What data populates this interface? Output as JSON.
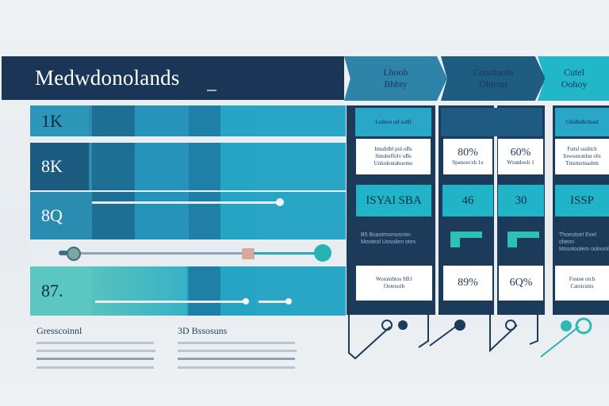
{
  "header": {
    "title": "Medwdonolands",
    "chevrons": [
      {
        "line1": "Lhoob",
        "line2": "Bhbty"
      },
      {
        "line1": "Conotooth",
        "line2": "Ohicon"
      },
      {
        "line1": "Cutel",
        "line2": "Oohoy"
      }
    ]
  },
  "left_panel": {
    "rows": [
      "1K",
      "8K",
      "8Q",
      "87."
    ]
  },
  "right_grid": {
    "top_labels": [
      "Lsdnoo otf soBf",
      "",
      "Gfedhdbchsed"
    ],
    "cards_row1": [
      {
        "text": "Imsdslbl pol oBs\nSmobeffolv oBs\nUnlodoutaboomo"
      },
      {
        "text": "80%",
        "sub": "Spanoecxh 1x"
      },
      {
        "text": "60%",
        "sub": "Wsutdoolt 1"
      },
      {
        "text": "Fsttsl ssslttch\nInwsstsonlsn ofn\nTmsttsrtnasbm"
      }
    ],
    "teal_row": [
      "ISYAl SBA",
      "46",
      "30",
      "ISSP"
    ],
    "mid_text": [
      "B5 Bsaotmomosmin\nMooteol Uosoilen otes",
      "Thoeotoel Eoel olteon\nMosotoolem oolnonl"
    ],
    "cards_row3": [
      {
        "text": "Wotombtos SB1\nOotexoib"
      },
      {
        "text": "89%"
      },
      {
        "text": "6Q%"
      },
      {
        "text": "Fostoe otch\nCatoicsnis"
      }
    ]
  },
  "legend": {
    "left_title": "Gresscoinnl",
    "right_title": "3D Bssosuns"
  },
  "colors": {
    "navy": "#1a3556",
    "teal": "#21b3c7",
    "blue": "#2d84a8"
  }
}
